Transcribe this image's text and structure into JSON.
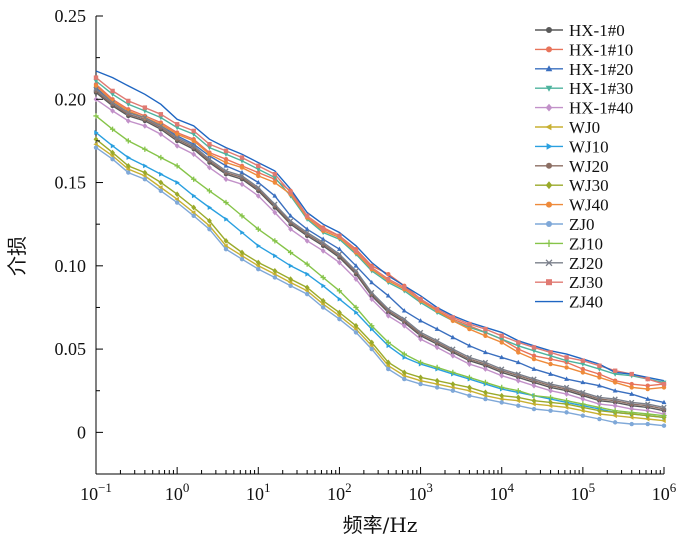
{
  "chart_data": {
    "type": "line",
    "xlabel": "频率/Hz",
    "ylabel": "介损",
    "xscale": "log",
    "xlim": [
      0.1,
      1000000
    ],
    "ylim": [
      -0.025,
      0.25
    ],
    "x_tick_labels": [
      {
        "base": "10",
        "exp": "−1"
      },
      {
        "base": "10",
        "exp": "0"
      },
      {
        "base": "10",
        "exp": "1"
      },
      {
        "base": "10",
        "exp": "2"
      },
      {
        "base": "10",
        "exp": "3"
      },
      {
        "base": "10",
        "exp": "4"
      },
      {
        "base": "10",
        "exp": "5"
      },
      {
        "base": "10",
        "exp": "6"
      }
    ],
    "y_ticks": [
      0,
      0.05,
      0.1,
      0.15,
      0.2,
      0.25
    ],
    "y_tick_labels": [
      "0",
      "0.05",
      "0.10",
      "0.15",
      "0.20",
      "0.25"
    ],
    "legend_position": "top-right",
    "grid": false,
    "x": [
      0.1,
      0.16,
      0.25,
      0.4,
      0.63,
      1,
      1.6,
      2.5,
      4,
      6.3,
      10,
      16,
      25,
      40,
      63,
      100,
      160,
      250,
      400,
      630,
      1000,
      1600,
      2500,
      4000,
      6300,
      10000,
      16000,
      25000,
      40000,
      63000,
      100000,
      160000,
      250000,
      400000,
      630000,
      1000000
    ],
    "series": [
      {
        "name": "HX-1#0",
        "color": "#595959",
        "marker": "circle",
        "values": [
          0.204,
          0.196,
          0.19,
          0.187,
          0.182,
          0.175,
          0.17,
          0.162,
          0.155,
          0.152,
          0.145,
          0.135,
          0.125,
          0.118,
          0.112,
          0.105,
          0.095,
          0.082,
          0.072,
          0.066,
          0.058,
          0.053,
          0.048,
          0.043,
          0.04,
          0.036,
          0.033,
          0.03,
          0.027,
          0.025,
          0.022,
          0.019,
          0.018,
          0.016,
          0.015,
          0.013
        ]
      },
      {
        "name": "HX-1#10",
        "color": "#e8735a",
        "marker": "circle",
        "values": [
          0.209,
          0.2,
          0.194,
          0.19,
          0.186,
          0.18,
          0.176,
          0.168,
          0.164,
          0.16,
          0.156,
          0.152,
          0.145,
          0.13,
          0.123,
          0.118,
          0.11,
          0.1,
          0.095,
          0.088,
          0.08,
          0.073,
          0.068,
          0.064,
          0.06,
          0.056,
          0.05,
          0.046,
          0.044,
          0.042,
          0.038,
          0.035,
          0.031,
          0.029,
          0.028,
          0.029
        ]
      },
      {
        "name": "HX-1#20",
        "color": "#3a6fbf",
        "marker": "triangle",
        "values": [
          0.207,
          0.198,
          0.192,
          0.189,
          0.184,
          0.178,
          0.173,
          0.166,
          0.16,
          0.156,
          0.15,
          0.142,
          0.13,
          0.122,
          0.116,
          0.11,
          0.1,
          0.09,
          0.082,
          0.073,
          0.067,
          0.062,
          0.057,
          0.052,
          0.048,
          0.045,
          0.042,
          0.038,
          0.035,
          0.032,
          0.03,
          0.028,
          0.025,
          0.023,
          0.02,
          0.018
        ]
      },
      {
        "name": "HX-1#30",
        "color": "#4db39e",
        "marker": "triangle-down",
        "values": [
          0.211,
          0.203,
          0.197,
          0.193,
          0.189,
          0.183,
          0.179,
          0.171,
          0.167,
          0.163,
          0.158,
          0.153,
          0.142,
          0.128,
          0.12,
          0.116,
          0.107,
          0.097,
          0.09,
          0.085,
          0.078,
          0.072,
          0.067,
          0.063,
          0.06,
          0.056,
          0.052,
          0.049,
          0.046,
          0.043,
          0.041,
          0.038,
          0.035,
          0.034,
          0.032,
          0.03
        ]
      },
      {
        "name": "HX-1#40",
        "color": "#c291c9",
        "marker": "diamond",
        "values": [
          0.2,
          0.193,
          0.187,
          0.184,
          0.179,
          0.172,
          0.167,
          0.159,
          0.152,
          0.149,
          0.142,
          0.132,
          0.122,
          0.115,
          0.109,
          0.102,
          0.092,
          0.08,
          0.07,
          0.064,
          0.056,
          0.051,
          0.046,
          0.041,
          0.038,
          0.034,
          0.031,
          0.028,
          0.025,
          0.023,
          0.02,
          0.017,
          0.016,
          0.014,
          0.013,
          0.011
        ]
      },
      {
        "name": "WJ0",
        "color": "#c8b032",
        "marker": "triangle-left",
        "values": [
          0.173,
          0.166,
          0.158,
          0.154,
          0.147,
          0.14,
          0.132,
          0.124,
          0.112,
          0.106,
          0.1,
          0.095,
          0.09,
          0.085,
          0.077,
          0.07,
          0.062,
          0.052,
          0.04,
          0.034,
          0.031,
          0.029,
          0.027,
          0.025,
          0.022,
          0.02,
          0.019,
          0.017,
          0.016,
          0.015,
          0.013,
          0.011,
          0.01,
          0.009,
          0.008,
          0.007
        ]
      },
      {
        "name": "WJ10",
        "color": "#2aa0e0",
        "marker": "triangle-right",
        "values": [
          0.18,
          0.172,
          0.165,
          0.16,
          0.155,
          0.15,
          0.142,
          0.135,
          0.128,
          0.12,
          0.112,
          0.106,
          0.1,
          0.095,
          0.088,
          0.08,
          0.072,
          0.062,
          0.052,
          0.045,
          0.041,
          0.038,
          0.035,
          0.032,
          0.029,
          0.026,
          0.024,
          0.022,
          0.02,
          0.018,
          0.016,
          0.014,
          0.012,
          0.011,
          0.01,
          0.009
        ]
      },
      {
        "name": "WJ20",
        "color": "#8c6e63",
        "marker": "circle",
        "values": [
          0.205,
          0.197,
          0.191,
          0.188,
          0.183,
          0.176,
          0.171,
          0.163,
          0.156,
          0.153,
          0.146,
          0.136,
          0.126,
          0.119,
          0.113,
          0.106,
          0.096,
          0.083,
          0.073,
          0.067,
          0.059,
          0.054,
          0.049,
          0.044,
          0.041,
          0.037,
          0.034,
          0.031,
          0.028,
          0.026,
          0.023,
          0.02,
          0.019,
          0.017,
          0.016,
          0.014
        ]
      },
      {
        "name": "WJ30",
        "color": "#9aaa2a",
        "marker": "diamond",
        "values": [
          0.176,
          0.168,
          0.16,
          0.156,
          0.15,
          0.143,
          0.135,
          0.127,
          0.115,
          0.108,
          0.102,
          0.097,
          0.092,
          0.087,
          0.079,
          0.072,
          0.064,
          0.054,
          0.042,
          0.036,
          0.033,
          0.031,
          0.029,
          0.027,
          0.024,
          0.022,
          0.021,
          0.019,
          0.018,
          0.017,
          0.015,
          0.013,
          0.012,
          0.011,
          0.01,
          0.009
        ]
      },
      {
        "name": "WJ40",
        "color": "#ee8a3a",
        "marker": "circle",
        "values": [
          0.208,
          0.199,
          0.193,
          0.189,
          0.185,
          0.179,
          0.175,
          0.167,
          0.162,
          0.159,
          0.154,
          0.15,
          0.143,
          0.129,
          0.121,
          0.117,
          0.108,
          0.098,
          0.091,
          0.086,
          0.079,
          0.073,
          0.067,
          0.062,
          0.058,
          0.054,
          0.048,
          0.044,
          0.041,
          0.039,
          0.036,
          0.033,
          0.03,
          0.027,
          0.026,
          0.027
        ]
      },
      {
        "name": "ZJ0",
        "color": "#7fa8d8",
        "marker": "circle",
        "values": [
          0.171,
          0.164,
          0.156,
          0.152,
          0.145,
          0.138,
          0.13,
          0.122,
          0.11,
          0.104,
          0.098,
          0.093,
          0.088,
          0.083,
          0.075,
          0.068,
          0.06,
          0.05,
          0.038,
          0.032,
          0.029,
          0.027,
          0.025,
          0.022,
          0.02,
          0.018,
          0.016,
          0.014,
          0.013,
          0.012,
          0.01,
          0.008,
          0.006,
          0.005,
          0.005,
          0.004
        ]
      },
      {
        "name": "ZJ10",
        "color": "#86c449",
        "marker": "plus",
        "values": [
          0.19,
          0.182,
          0.175,
          0.17,
          0.165,
          0.16,
          0.152,
          0.145,
          0.138,
          0.13,
          0.122,
          0.115,
          0.108,
          0.101,
          0.093,
          0.085,
          0.075,
          0.064,
          0.054,
          0.047,
          0.042,
          0.039,
          0.036,
          0.033,
          0.03,
          0.027,
          0.025,
          0.022,
          0.021,
          0.019,
          0.017,
          0.015,
          0.013,
          0.012,
          0.011,
          0.01
        ]
      },
      {
        "name": "ZJ20",
        "color": "#7a7f8a",
        "marker": "x",
        "values": [
          0.206,
          0.198,
          0.192,
          0.189,
          0.184,
          0.177,
          0.172,
          0.164,
          0.157,
          0.154,
          0.147,
          0.137,
          0.127,
          0.12,
          0.114,
          0.107,
          0.097,
          0.084,
          0.074,
          0.068,
          0.06,
          0.055,
          0.05,
          0.045,
          0.042,
          0.038,
          0.035,
          0.032,
          0.029,
          0.027,
          0.024,
          0.021,
          0.02,
          0.018,
          0.017,
          0.015
        ]
      },
      {
        "name": "ZJ30",
        "color": "#e07a72",
        "marker": "square",
        "values": [
          0.213,
          0.205,
          0.199,
          0.195,
          0.191,
          0.185,
          0.181,
          0.173,
          0.169,
          0.165,
          0.16,
          0.155,
          0.144,
          0.13,
          0.122,
          0.118,
          0.109,
          0.099,
          0.092,
          0.087,
          0.08,
          0.074,
          0.069,
          0.065,
          0.062,
          0.058,
          0.054,
          0.051,
          0.048,
          0.045,
          0.043,
          0.04,
          0.037,
          0.035,
          0.032,
          0.029
        ]
      },
      {
        "name": "ZJ40",
        "color": "#1f66c2",
        "marker": "none",
        "values": [
          0.217,
          0.213,
          0.208,
          0.203,
          0.197,
          0.188,
          0.184,
          0.176,
          0.171,
          0.167,
          0.162,
          0.157,
          0.146,
          0.132,
          0.125,
          0.12,
          0.112,
          0.102,
          0.094,
          0.088,
          0.082,
          0.075,
          0.07,
          0.066,
          0.063,
          0.06,
          0.055,
          0.052,
          0.049,
          0.047,
          0.044,
          0.041,
          0.036,
          0.035,
          0.033,
          0.031
        ]
      }
    ]
  }
}
